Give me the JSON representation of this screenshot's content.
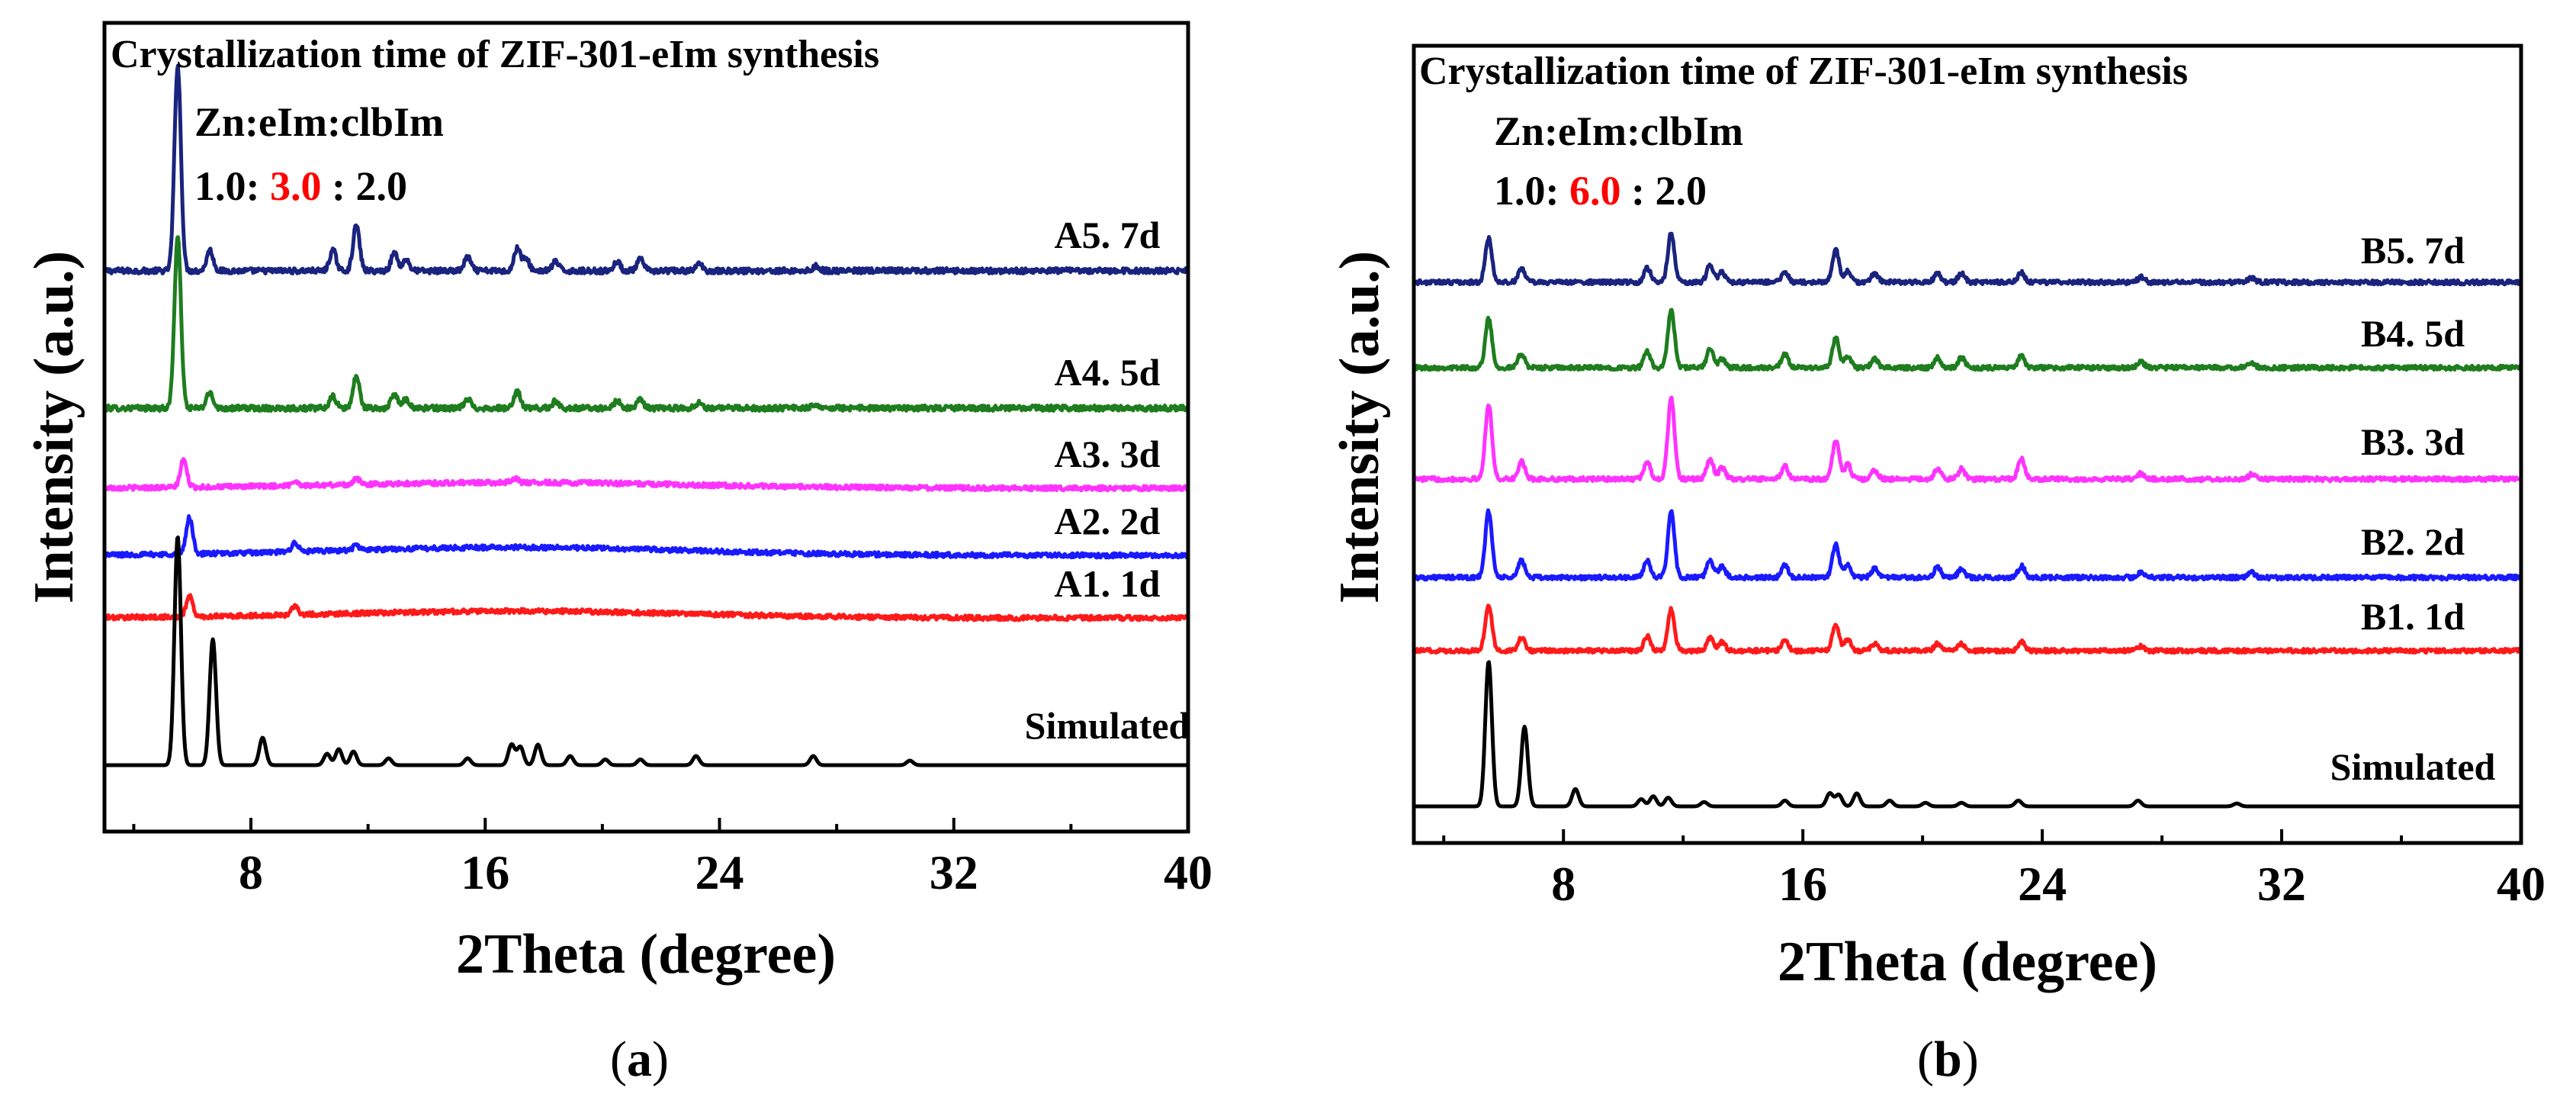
{
  "chart_data": [
    {
      "type": "line",
      "panel": "a",
      "caption_letter": "a",
      "title": "Crystallization time of ZIF-301-eIm synthesis",
      "ratio_label": "Zn:eIm:clbIm",
      "ratio_prefix": "1.0: ",
      "ratio_highlight": "3.0",
      "ratio_suffix": " : 2.0",
      "highlight_color": "#ff0000",
      "xlabel": "2Theta (degree)",
      "ylabel": "Intensity (a.u.)",
      "xlim": [
        3,
        40
      ],
      "xticks": [
        8,
        16,
        24,
        32,
        40
      ],
      "y_ticks_shown": false,
      "series": [
        {
          "name": "A5. 7d",
          "color": "#1a237e",
          "peaks": [
            [
              5.5,
              9.0
            ],
            [
              6.6,
              0.9
            ],
            [
              10.8,
              0.9
            ],
            [
              11.6,
              2.0
            ],
            [
              12.9,
              0.8
            ],
            [
              13.3,
              0.5
            ],
            [
              15.4,
              0.6
            ],
            [
              17.1,
              1.0
            ],
            [
              17.4,
              0.5
            ],
            [
              18.4,
              0.4
            ],
            [
              20.5,
              0.4
            ],
            [
              21.3,
              0.5
            ],
            [
              23.3,
              0.3
            ],
            [
              27.3,
              0.2
            ]
          ],
          "noise": 0.12
        },
        {
          "name": "A4. 5d",
          "color": "#1e7d1e",
          "peaks": [
            [
              5.5,
              7.5
            ],
            [
              6.6,
              0.7
            ],
            [
              10.8,
              0.5
            ],
            [
              11.6,
              1.4
            ],
            [
              12.9,
              0.6
            ],
            [
              13.3,
              0.4
            ],
            [
              15.4,
              0.4
            ],
            [
              17.1,
              0.7
            ],
            [
              18.4,
              0.3
            ],
            [
              20.5,
              0.3
            ],
            [
              21.3,
              0.35
            ],
            [
              23.3,
              0.25
            ],
            [
              27.3,
              0.2
            ]
          ],
          "noise": 0.12
        },
        {
          "name": "A3. 3d",
          "color": "#ff33ff",
          "peaks": [
            [
              5.7,
              1.2
            ],
            [
              9.5,
              0.2
            ],
            [
              11.6,
              0.25
            ],
            [
              17.0,
              0.2
            ]
          ],
          "noise": 0.1,
          "hump": 0.25
        },
        {
          "name": "A2. 2d",
          "color": "#1a1aff",
          "peaks": [
            [
              5.9,
              1.6
            ],
            [
              9.5,
              0.4
            ],
            [
              11.6,
              0.2
            ]
          ],
          "noise": 0.1,
          "hump": 0.35
        },
        {
          "name": "A1. 1d",
          "color": "#ff1a1a",
          "peaks": [
            [
              5.9,
              0.9
            ],
            [
              9.5,
              0.4
            ]
          ],
          "noise": 0.1,
          "hump": 0.3
        },
        {
          "name": "Simulated",
          "color": "#000000",
          "peaks": [
            [
              5.5,
              10.0
            ],
            [
              6.7,
              5.5
            ],
            [
              8.4,
              1.2
            ],
            [
              10.6,
              0.5
            ],
            [
              11.0,
              0.7
            ],
            [
              11.5,
              0.6
            ],
            [
              12.7,
              0.3
            ],
            [
              15.4,
              0.3
            ],
            [
              16.9,
              0.9
            ],
            [
              17.2,
              0.8
            ],
            [
              17.8,
              0.9
            ],
            [
              18.9,
              0.4
            ],
            [
              20.1,
              0.25
            ],
            [
              21.3,
              0.25
            ],
            [
              23.2,
              0.4
            ],
            [
              27.2,
              0.4
            ],
            [
              30.5,
              0.2
            ]
          ],
          "noise": 0.0
        }
      ]
    },
    {
      "type": "line",
      "panel": "b",
      "caption_letter": "b",
      "title": "Crystallization time of ZIF-301-eIm synthesis",
      "ratio_label": "Zn:eIm:clbIm",
      "ratio_prefix": "1.0: ",
      "ratio_highlight": "6.0",
      "ratio_suffix": " : 2.0",
      "highlight_color": "#ff0000",
      "xlabel": "2Theta (degree)",
      "ylabel": "Intensity (a.u.)",
      "xlim": [
        3,
        40
      ],
      "xticks": [
        8,
        16,
        24,
        32,
        40
      ],
      "y_ticks_shown": false,
      "series": [
        {
          "name": "B5. 7d",
          "color": "#1a237e",
          "peaks": [
            [
              5.5,
              3.0
            ],
            [
              6.6,
              1.0
            ],
            [
              10.8,
              1.0
            ],
            [
              11.6,
              3.4
            ],
            [
              12.9,
              1.2
            ],
            [
              13.3,
              0.7
            ],
            [
              15.4,
              0.7
            ],
            [
              17.1,
              2.2
            ],
            [
              17.5,
              0.8
            ],
            [
              18.4,
              0.6
            ],
            [
              20.5,
              0.6
            ],
            [
              21.3,
              0.6
            ],
            [
              23.3,
              0.7
            ],
            [
              27.3,
              0.35
            ],
            [
              31.0,
              0.3
            ]
          ],
          "noise": 0.15
        },
        {
          "name": "B4. 5d",
          "color": "#1e7d1e",
          "peaks": [
            [
              5.5,
              3.4
            ],
            [
              6.6,
              1.0
            ],
            [
              10.8,
              1.1
            ],
            [
              11.6,
              4.0
            ],
            [
              12.9,
              1.3
            ],
            [
              13.3,
              0.6
            ],
            [
              15.4,
              0.9
            ],
            [
              17.1,
              2.1
            ],
            [
              17.5,
              0.8
            ],
            [
              18.4,
              0.6
            ],
            [
              20.5,
              0.7
            ],
            [
              21.3,
              0.7
            ],
            [
              23.3,
              0.8
            ],
            [
              27.3,
              0.4
            ],
            [
              31.0,
              0.35
            ]
          ],
          "noise": 0.15
        },
        {
          "name": "B3. 3d",
          "color": "#ff33ff",
          "peaks": [
            [
              5.5,
              5.2
            ],
            [
              6.6,
              1.2
            ],
            [
              10.8,
              1.2
            ],
            [
              11.6,
              5.6
            ],
            [
              12.9,
              1.4
            ],
            [
              13.3,
              0.8
            ],
            [
              15.4,
              0.9
            ],
            [
              17.1,
              2.7
            ],
            [
              17.5,
              1.0
            ],
            [
              18.4,
              0.6
            ],
            [
              20.5,
              0.7
            ],
            [
              21.3,
              0.7
            ],
            [
              23.3,
              1.4
            ],
            [
              27.3,
              0.4
            ],
            [
              31.0,
              0.35
            ]
          ],
          "noise": 0.15
        },
        {
          "name": "B2. 2d",
          "color": "#1a1aff",
          "peaks": [
            [
              5.5,
              4.6
            ],
            [
              6.6,
              1.2
            ],
            [
              10.8,
              1.2
            ],
            [
              11.6,
              4.5
            ],
            [
              12.9,
              1.2
            ],
            [
              13.3,
              0.8
            ],
            [
              15.4,
              0.9
            ],
            [
              17.1,
              2.3
            ],
            [
              17.5,
              0.9
            ],
            [
              18.4,
              0.6
            ],
            [
              20.5,
              0.7
            ],
            [
              21.3,
              0.6
            ],
            [
              23.3,
              0.8
            ],
            [
              27.3,
              0.4
            ],
            [
              31.0,
              0.35
            ]
          ],
          "noise": 0.15
        },
        {
          "name": "B1. 1d",
          "color": "#ff1a1a",
          "peaks": [
            [
              5.5,
              3.2
            ],
            [
              6.6,
              0.9
            ],
            [
              10.8,
              1.0
            ],
            [
              11.6,
              2.9
            ],
            [
              12.9,
              0.9
            ],
            [
              13.3,
              0.6
            ],
            [
              15.4,
              0.8
            ],
            [
              17.1,
              1.8
            ],
            [
              17.5,
              0.8
            ],
            [
              18.4,
              0.5
            ],
            [
              20.5,
              0.5
            ],
            [
              21.3,
              0.5
            ],
            [
              23.3,
              0.6
            ],
            [
              27.3,
              0.3
            ]
          ],
          "noise": 0.14
        },
        {
          "name": "Simulated",
          "color": "#000000",
          "peaks": [
            [
              5.5,
              10.0
            ],
            [
              6.7,
              5.5
            ],
            [
              8.4,
              1.2
            ],
            [
              10.6,
              0.5
            ],
            [
              11.0,
              0.7
            ],
            [
              11.5,
              0.6
            ],
            [
              12.7,
              0.3
            ],
            [
              15.4,
              0.4
            ],
            [
              16.9,
              0.9
            ],
            [
              17.2,
              0.8
            ],
            [
              17.8,
              0.9
            ],
            [
              18.9,
              0.4
            ],
            [
              20.1,
              0.25
            ],
            [
              21.3,
              0.25
            ],
            [
              23.2,
              0.4
            ],
            [
              27.2,
              0.4
            ],
            [
              30.5,
              0.2
            ]
          ],
          "noise": 0.0
        }
      ]
    }
  ]
}
